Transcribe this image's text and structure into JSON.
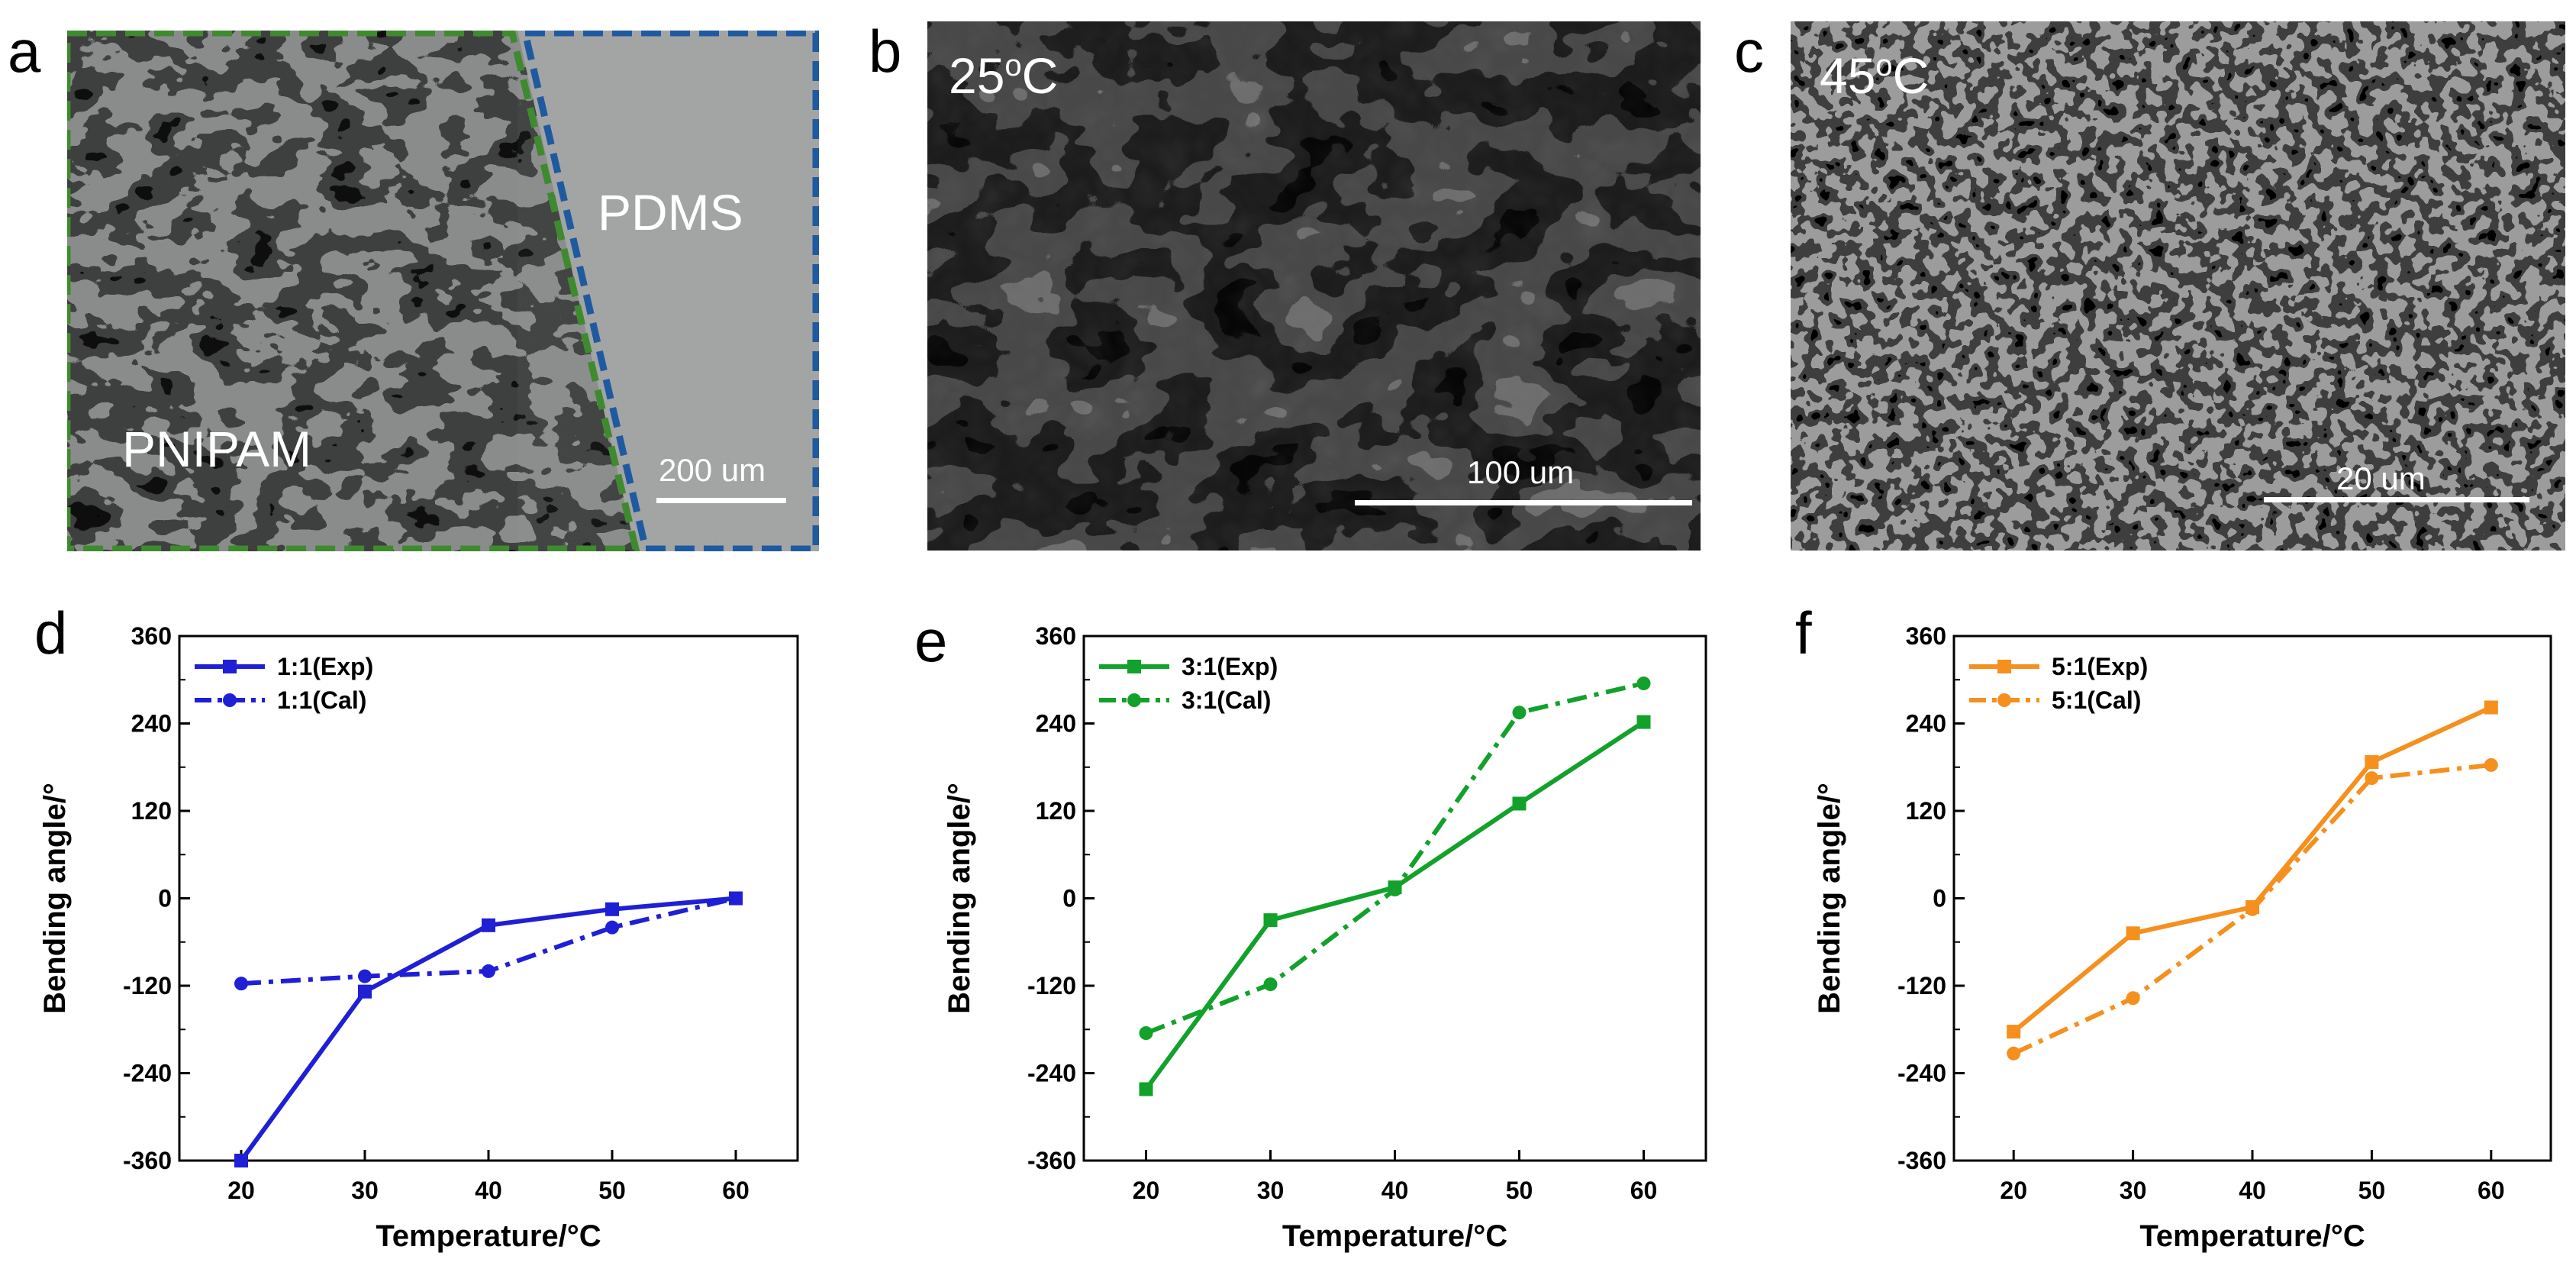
{
  "panels": {
    "a": {
      "letter": "a",
      "region_left": "PNIPAM",
      "region_right": "PDMS",
      "scale": "200 um",
      "left_border_color": "#3f8a2f",
      "right_border_color": "#1f5aa0"
    },
    "b": {
      "letter": "b",
      "condition": "25",
      "condition_suffix": "C",
      "degree_mark": "o",
      "scale": "100 um"
    },
    "c": {
      "letter": "c",
      "condition": "45",
      "condition_suffix": "C",
      "degree_mark": "o",
      "scale": "20 um"
    },
    "d": {
      "letter": "d"
    },
    "e": {
      "letter": "e"
    },
    "f": {
      "letter": "f"
    }
  },
  "chart_data": [
    {
      "panel": "d",
      "type": "line",
      "title": "",
      "xlabel": "Temperature/°C",
      "ylabel": "Bending angle/°",
      "x": [
        20,
        30,
        40,
        50,
        60
      ],
      "xlim": [
        15,
        65
      ],
      "ylim": [
        -360,
        360
      ],
      "xticks": [
        "20",
        "30",
        "40",
        "50",
        "60"
      ],
      "yticks": [
        "-360",
        "-240",
        "-120",
        "0",
        "120",
        "240",
        "360"
      ],
      "legend_position": "top-left",
      "color": "#1f1fd6",
      "series": [
        {
          "name": "1:1(Exp)",
          "style": "solid",
          "marker": "square",
          "values": [
            -360,
            -128,
            -37,
            -15,
            0
          ]
        },
        {
          "name": "1:1(Cal)",
          "style": "dashdot",
          "marker": "circle",
          "values": [
            -117,
            -107,
            -100,
            -40,
            0
          ]
        }
      ]
    },
    {
      "panel": "e",
      "type": "line",
      "title": "",
      "xlabel": "Temperature/°C",
      "ylabel": "Bending angle/°",
      "x": [
        20,
        30,
        40,
        50,
        60
      ],
      "xlim": [
        15,
        65
      ],
      "ylim": [
        -360,
        360
      ],
      "xticks": [
        "20",
        "30",
        "40",
        "50",
        "60"
      ],
      "yticks": [
        "-360",
        "-240",
        "-120",
        "0",
        "120",
        "240",
        "360"
      ],
      "legend_position": "top-left",
      "color": "#12a12a",
      "series": [
        {
          "name": "3:1(Exp)",
          "style": "solid",
          "marker": "square",
          "values": [
            -262,
            -30,
            15,
            130,
            242
          ]
        },
        {
          "name": "3:1(Cal)",
          "style": "dashdot",
          "marker": "circle",
          "values": [
            -185,
            -118,
            12,
            255,
            295
          ]
        }
      ]
    },
    {
      "panel": "f",
      "type": "line",
      "title": "",
      "xlabel": "Temperature/°C",
      "ylabel": "Bending angle/°",
      "x": [
        20,
        30,
        40,
        50,
        60
      ],
      "xlim": [
        15,
        65
      ],
      "ylim": [
        -360,
        360
      ],
      "xticks": [
        "20",
        "30",
        "40",
        "50",
        "60"
      ],
      "yticks": [
        "-360",
        "-240",
        "-120",
        "0",
        "120",
        "240",
        "360"
      ],
      "legend_position": "top-left",
      "color": "#f5901e",
      "series": [
        {
          "name": "5:1(Exp)",
          "style": "solid",
          "marker": "square",
          "values": [
            -183,
            -48,
            -12,
            187,
            262
          ]
        },
        {
          "name": "5:1(Cal)",
          "style": "dashdot",
          "marker": "circle",
          "values": [
            -213,
            -137,
            -15,
            165,
            183
          ]
        }
      ]
    }
  ]
}
